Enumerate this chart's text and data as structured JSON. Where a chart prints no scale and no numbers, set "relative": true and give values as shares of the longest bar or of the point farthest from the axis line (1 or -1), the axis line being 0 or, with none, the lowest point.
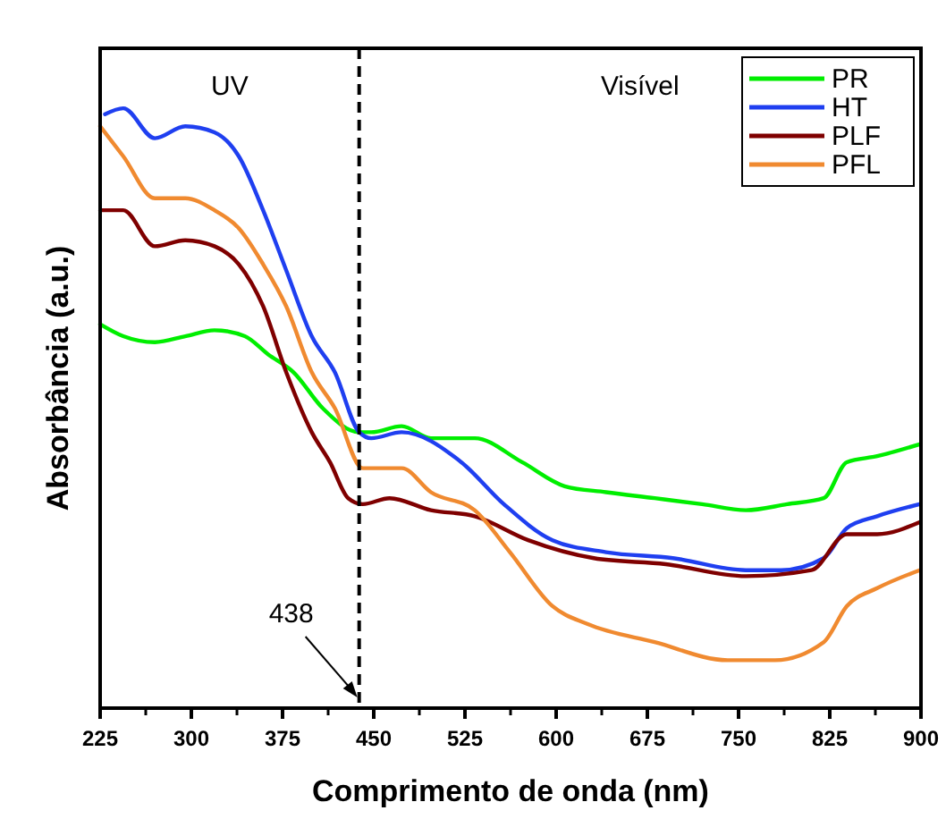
{
  "chart_data": {
    "type": "line",
    "xlabel": "Comprimento de onda (nm)",
    "ylabel": "Absorbância (a.u.)",
    "relative": true,
    "xlim": [
      225,
      900
    ],
    "xticks": [
      225,
      300,
      375,
      450,
      525,
      600,
      675,
      750,
      825,
      900
    ],
    "tick_labels": "x",
    "legend": "top right",
    "line_style": "solid",
    "ref_lines": [
      {
        "axis": "x",
        "value": 438,
        "line_style": "dashed",
        "color": "#000000"
      }
    ],
    "annotations": [
      "UV",
      "Visível",
      "438"
    ],
    "series": [
      {
        "name": "PR",
        "color": "#00ee00",
        "x": [
          225,
          244,
          270,
          295,
          319,
          344,
          363,
          384,
          408,
          438,
          448,
          473,
          497,
          533,
          572,
          607,
          641,
          681,
          720,
          756,
          790,
          820,
          839,
          864,
          899
        ],
        "values": [
          0.64,
          0.62,
          0.61,
          0.62,
          0.63,
          0.62,
          0.59,
          0.56,
          0.5,
          0.46,
          0.46,
          0.47,
          0.45,
          0.45,
          0.41,
          0.37,
          0.36,
          0.35,
          0.34,
          0.33,
          0.34,
          0.35,
          0.41,
          0.42,
          0.44
        ]
      },
      {
        "name": "HT",
        "color": "#1f3ff0",
        "x": [
          229,
          244,
          270,
          295,
          319,
          339,
          359,
          378,
          399,
          418,
          438,
          448,
          473,
          522,
          557,
          597,
          641,
          696,
          756,
          785,
          820,
          839,
          864,
          899
        ],
        "values": [
          0.99,
          1,
          0.95,
          0.97,
          0.96,
          0.92,
          0.83,
          0.73,
          0.62,
          0.56,
          0.46,
          0.45,
          0.46,
          0.41,
          0.34,
          0.28,
          0.26,
          0.25,
          0.23,
          0.23,
          0.25,
          0.3,
          0.32,
          0.34
        ]
      },
      {
        "name": "PLF",
        "color": "#7f0000",
        "x": [
          225,
          244,
          270,
          295,
          319,
          339,
          359,
          378,
          399,
          414,
          429,
          441,
          463,
          497,
          533,
          577,
          631,
          690,
          756,
          810,
          839,
          864,
          899
        ],
        "values": [
          0.83,
          0.83,
          0.77,
          0.78,
          0.77,
          0.74,
          0.67,
          0.56,
          0.46,
          0.41,
          0.35,
          0.34,
          0.35,
          0.33,
          0.32,
          0.28,
          0.25,
          0.24,
          0.22,
          0.23,
          0.29,
          0.29,
          0.31
        ]
      },
      {
        "name": "PFL",
        "color": "#f08a30",
        "x": [
          225,
          244,
          270,
          295,
          319,
          339,
          359,
          378,
          399,
          418,
          441,
          448,
          473,
          497,
          533,
          562,
          597,
          626,
          681,
          741,
          780,
          820,
          839,
          864,
          899
        ],
        "values": [
          0.97,
          0.92,
          0.85,
          0.85,
          0.83,
          0.8,
          0.74,
          0.67,
          0.56,
          0.5,
          0.4,
          0.4,
          0.4,
          0.36,
          0.33,
          0.26,
          0.17,
          0.14,
          0.11,
          0.08,
          0.08,
          0.11,
          0.17,
          0.2,
          0.23
        ]
      }
    ]
  }
}
